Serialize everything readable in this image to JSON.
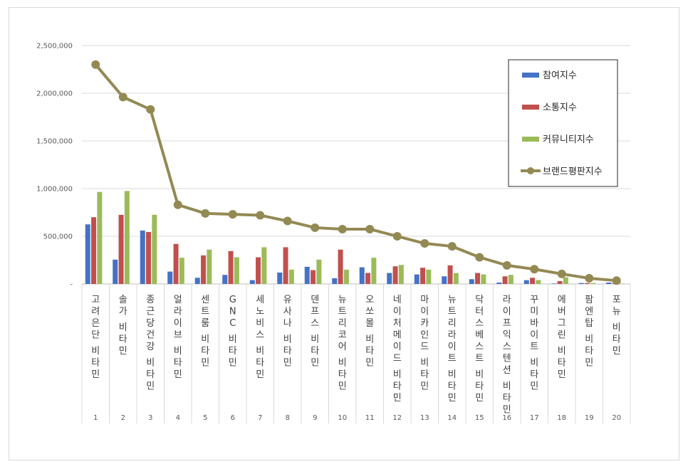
{
  "chart_data": {
    "type": "bar",
    "categories": [
      "고려은단 비타민",
      "솔가 비타민",
      "종근당건강 비타민",
      "얼라이브 비타민",
      "센트룸 비타민",
      "GNC 비타민",
      "세노비스 비타민",
      "유사나 비타민",
      "덴프스 비타민",
      "뉴트리코어 비타민",
      "오쏘몰 비타민",
      "네이처메이드 비타민",
      "마이카인드 비타민",
      "뉴트리라이트 비타민",
      "닥터스베스트 비타민",
      "라이프익스텐션 비타민",
      "꾸미바이트 비타민",
      "에버그린 비타민",
      "팜엔탑 비타민",
      "포뉴 비타민"
    ],
    "ranks": [
      "1",
      "2",
      "3",
      "4",
      "5",
      "6",
      "7",
      "8",
      "9",
      "10",
      "11",
      "12",
      "13",
      "14",
      "15",
      "16",
      "17",
      "18",
      "19",
      "20"
    ],
    "ylim": [
      0,
      2500000
    ],
    "yticks": [
      0,
      500000,
      1000000,
      1500000,
      2000000,
      2500000
    ],
    "ytick_labels": [
      "-",
      "500,000",
      "1,000,000",
      "1,500,000",
      "2,000,000",
      "2,500,000"
    ],
    "grid": true,
    "legend_position": "top-right",
    "series": [
      {
        "name": "참여지수",
        "type": "bar",
        "color": "#4472c4",
        "values": [
          625000,
          255000,
          560000,
          130000,
          65000,
          95000,
          40000,
          120000,
          180000,
          60000,
          175000,
          115000,
          100000,
          80000,
          50000,
          15000,
          40000,
          5000,
          10000,
          15000
        ]
      },
      {
        "name": "소통지수",
        "type": "bar",
        "color": "#c0504d",
        "values": [
          700000,
          725000,
          545000,
          420000,
          300000,
          345000,
          280000,
          385000,
          145000,
          360000,
          115000,
          185000,
          170000,
          195000,
          115000,
          80000,
          65000,
          30000,
          10000,
          10000
        ]
      },
      {
        "name": "커뮤니티지수",
        "type": "bar",
        "color": "#9bbb59",
        "values": [
          965000,
          975000,
          725000,
          275000,
          360000,
          280000,
          385000,
          150000,
          255000,
          150000,
          275000,
          200000,
          150000,
          115000,
          100000,
          95000,
          40000,
          70000,
          10000,
          5000
        ]
      },
      {
        "name": "브랜드평판지수",
        "type": "line",
        "color": "#938953",
        "values": [
          2300000,
          1960000,
          1830000,
          830000,
          740000,
          730000,
          720000,
          660000,
          590000,
          575000,
          575000,
          500000,
          425000,
          395000,
          280000,
          195000,
          155000,
          105000,
          60000,
          35000
        ]
      }
    ]
  }
}
